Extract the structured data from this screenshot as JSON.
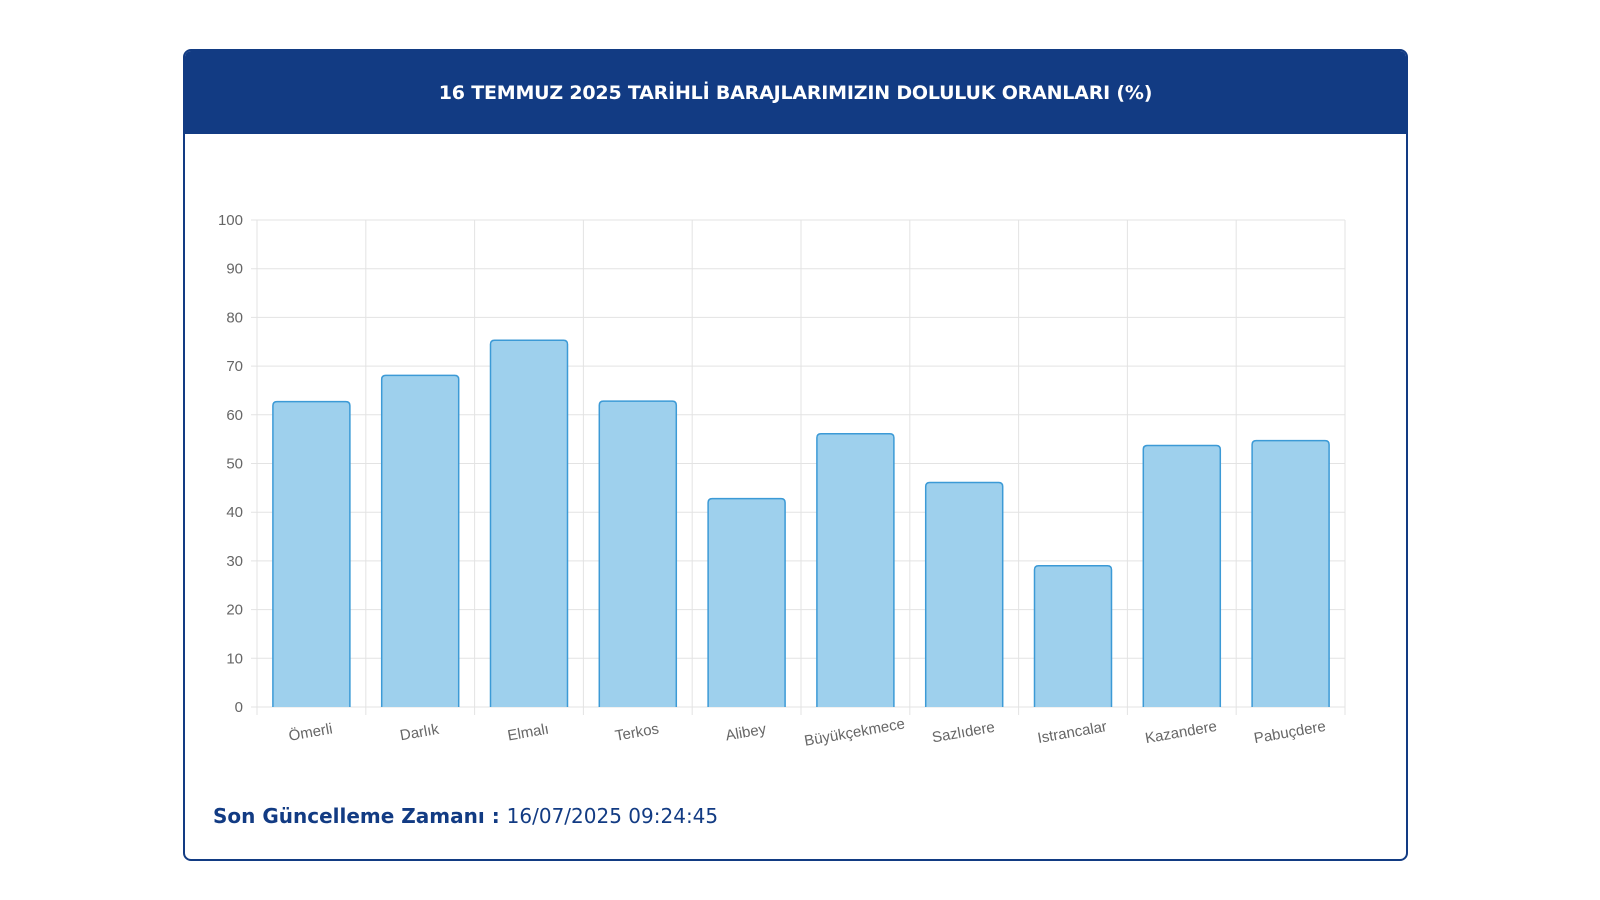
{
  "header": {
    "title": "16 TEMMUZ 2025 TARİHLİ BARAJLARIMIZIN DOLULUK ORANLARI (%)"
  },
  "footer": {
    "label": "Son Güncelleme Zamanı",
    "separator": " : ",
    "timestamp": "16/07/2025 09:24:45"
  },
  "colors": {
    "header_bg": "#123b83",
    "bar_fill": "#9ed0ed",
    "bar_stroke": "#3c9ad6",
    "grid": "#e3e3e3",
    "text_axis": "#666666"
  },
  "chart_data": {
    "type": "bar",
    "categories": [
      "Ömerli",
      "Darlık",
      "Elmalı",
      "Terkos",
      "Alibey",
      "Büyükçekmece",
      "Sazlıdere",
      "Istrancalar",
      "Kazandere",
      "Pabuçdere"
    ],
    "values": [
      62.7,
      68.1,
      75.3,
      62.8,
      42.8,
      56.1,
      46.1,
      29.0,
      53.7,
      54.7
    ],
    "ylim": [
      0,
      100
    ],
    "yticks": [
      0,
      10,
      20,
      30,
      40,
      50,
      60,
      70,
      80,
      90,
      100
    ],
    "grid": true,
    "legend": "none"
  }
}
